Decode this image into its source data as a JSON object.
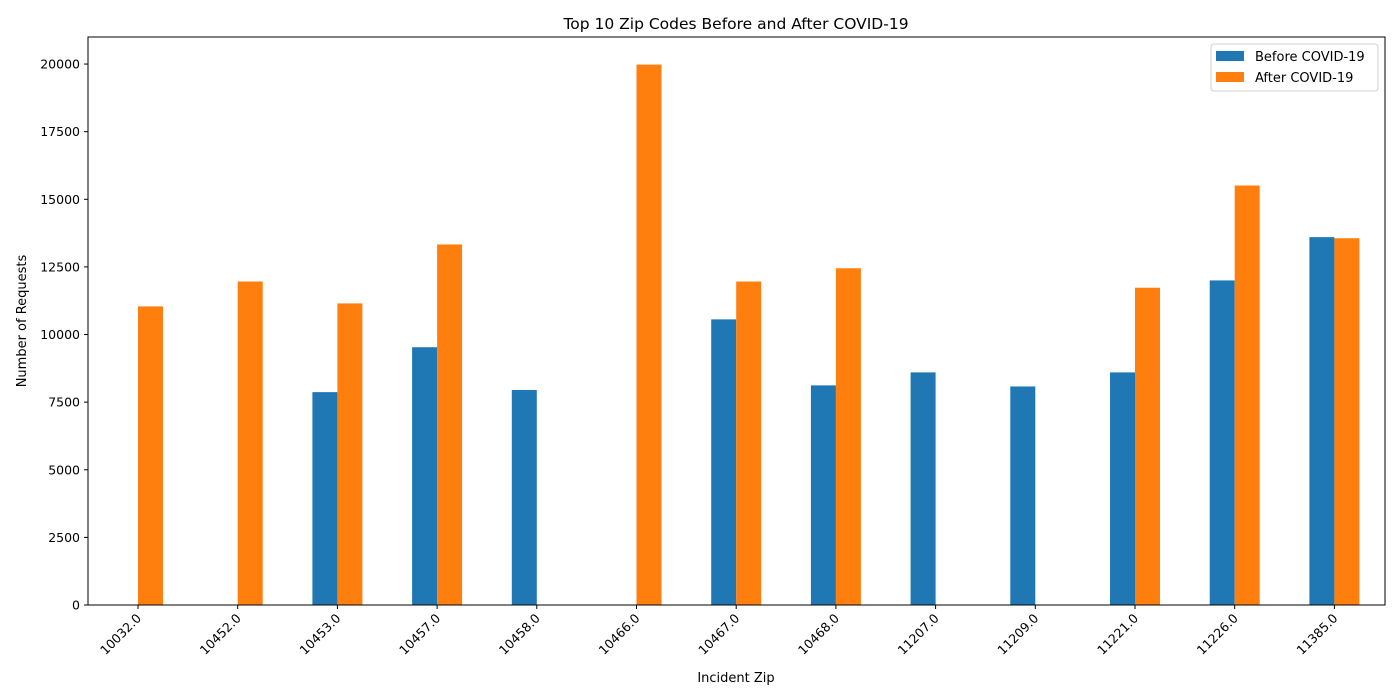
{
  "chart_data": {
    "type": "bar",
    "title": "Top 10 Zip Codes Before and After COVID-19",
    "xlabel": "Incident Zip",
    "ylabel": "Number of Requests",
    "ylim": [
      0,
      21000
    ],
    "yticks": [
      0,
      2500,
      5000,
      7500,
      10000,
      12500,
      15000,
      17500,
      20000
    ],
    "categories": [
      "10032.0",
      "10452.0",
      "10453.0",
      "10457.0",
      "10458.0",
      "10466.0",
      "10467.0",
      "10468.0",
      "11207.0",
      "11209.0",
      "11221.0",
      "11226.0",
      "11385.0"
    ],
    "series": [
      {
        "name": "Before COVID-19",
        "color": "#1f77b4",
        "values": [
          0,
          0,
          7870,
          9530,
          7950,
          0,
          10560,
          8120,
          8600,
          8080,
          8600,
          12000,
          13600
        ]
      },
      {
        "name": "After COVID-19",
        "color": "#ff7f0e",
        "values": [
          11040,
          11960,
          11150,
          13330,
          0,
          19980,
          11960,
          12450,
          0,
          0,
          11730,
          15510,
          13560
        ]
      }
    ],
    "legend_position": "top-right",
    "grid": false,
    "xtick_rotation": 45
  }
}
